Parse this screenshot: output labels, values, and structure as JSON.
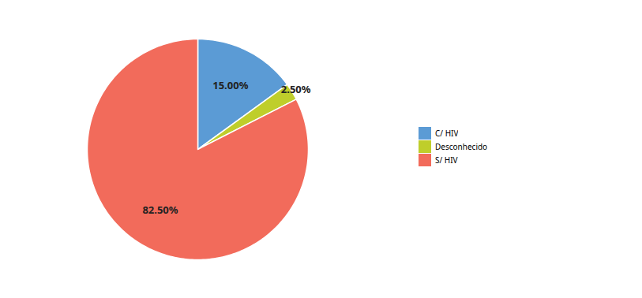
{
  "chart_data": {
    "type": "pie",
    "categories": [
      "C/ HIV",
      "Desconhecido",
      "S/ HIV"
    ],
    "values": [
      15.0,
      2.5,
      82.5
    ],
    "value_labels": [
      "15.00%",
      "2.50%",
      "82.50%"
    ],
    "colors": [
      "#5B9BD5",
      "#BFCE2B",
      "#F26B5B"
    ],
    "data_labels": true,
    "legend": "right"
  }
}
